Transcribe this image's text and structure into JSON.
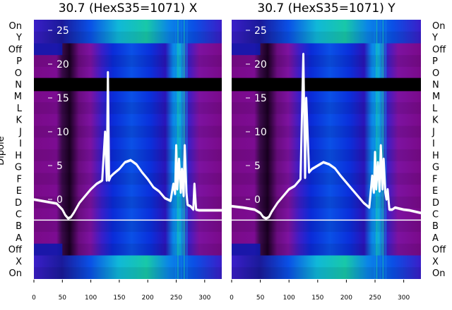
{
  "chart_data": {
    "type": "heatmap",
    "ylabel": "Dipole",
    "dipole_labels": [
      "On",
      "Y",
      "Off",
      "P",
      "O",
      "N",
      "M",
      "L",
      "K",
      "J",
      "I",
      "H",
      "G",
      "F",
      "E",
      "D",
      "C",
      "B",
      "A",
      "Off",
      "X",
      "On"
    ],
    "x_ticks": [
      0,
      50,
      100,
      150,
      200,
      250,
      300
    ],
    "xlim": [
      0,
      330
    ],
    "overlay_y_ticks": [
      0,
      5,
      10,
      15,
      20,
      25
    ],
    "overlay_ylim": [
      -3,
      27
    ],
    "colormap": [
      "#2a0033",
      "#7a0a8a",
      "#7d12a0",
      "#3a1ec8",
      "#0a2bd8",
      "#0a50e6",
      "#0a84e8",
      "#10b8d8",
      "#18c8a8"
    ],
    "panels": [
      {
        "title": "30.7 (HexS35=1071) X",
        "overlay_color": "#ffffff",
        "trace": {
          "x": [
            0,
            20,
            40,
            50,
            55,
            60,
            65,
            70,
            80,
            90,
            100,
            110,
            120,
            125,
            128,
            130,
            132,
            135,
            140,
            150,
            160,
            170,
            180,
            190,
            200,
            210,
            220,
            230,
            240,
            245,
            248,
            250,
            252,
            255,
            258,
            260,
            263,
            265,
            268,
            270,
            275,
            280,
            282,
            285,
            290,
            300,
            310,
            320,
            330
          ],
          "y": [
            0,
            -0.3,
            -0.6,
            -1.5,
            -2.3,
            -2.8,
            -2.6,
            -2,
            -0.5,
            0.5,
            1.5,
            2.3,
            2.8,
            10,
            2.8,
            18.8,
            2.8,
            3.4,
            3.8,
            4.5,
            5.5,
            5.8,
            5.2,
            4,
            3,
            1.8,
            1.2,
            0.2,
            -0.2,
            2.3,
            0.8,
            8,
            1.5,
            6,
            1,
            4.5,
            0.5,
            8,
            1,
            -0.8,
            -1,
            -1.5,
            2.3,
            -1.5,
            -1.6,
            -1.6,
            -1.6,
            -1.6,
            -1.6
          ]
        }
      },
      {
        "title": "30.7 (HexS35=1071) Y",
        "overlay_color": "#ffffff",
        "trace": {
          "x": [
            0,
            20,
            40,
            50,
            55,
            60,
            65,
            70,
            80,
            90,
            100,
            110,
            115,
            120,
            125,
            128,
            130,
            135,
            140,
            150,
            160,
            170,
            180,
            190,
            200,
            210,
            220,
            230,
            240,
            245,
            248,
            250,
            252,
            255,
            258,
            260,
            263,
            265,
            268,
            270,
            272,
            275,
            280,
            285,
            290,
            300,
            310,
            320,
            330
          ],
          "y": [
            -1,
            -1.2,
            -1.5,
            -2,
            -2.6,
            -2.8,
            -2.6,
            -1.8,
            -0.5,
            0.5,
            1.5,
            2,
            2.5,
            3,
            21.5,
            3.2,
            15,
            4,
            4.5,
            5,
            5.5,
            5.2,
            4.6,
            3.5,
            2.5,
            1.5,
            0.5,
            -0.5,
            -1.2,
            3.5,
            1,
            7,
            1.5,
            5.5,
            1.2,
            8,
            1.5,
            6,
            1,
            0,
            1.5,
            -1.5,
            -1.5,
            -1.2,
            -1.3,
            -1.5,
            -1.6,
            -1.8,
            -2
          ]
        }
      }
    ]
  }
}
